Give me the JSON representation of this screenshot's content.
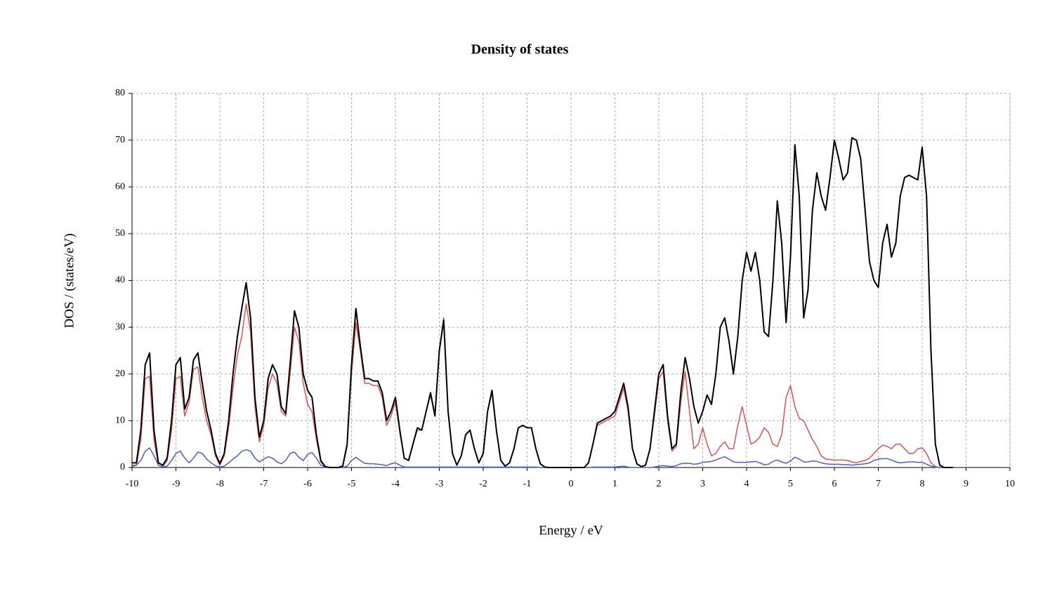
{
  "chart_data": {
    "type": "line",
    "title": "Density of states",
    "x_label": "Energy / eV",
    "y_label": "DOS / (states/eV)",
    "xlim": [
      -10,
      10
    ],
    "ylim": [
      0,
      80
    ],
    "xticks": [
      -10,
      -9,
      -8,
      -7,
      -6,
      -5,
      -4,
      -3,
      -2,
      -1,
      0,
      1,
      2,
      3,
      4,
      5,
      6,
      7,
      8,
      9,
      10
    ],
    "yticks": [
      0,
      10,
      20,
      30,
      40,
      50,
      60,
      70,
      80
    ],
    "grid": true,
    "x": [
      -10,
      -9.9,
      -9.8,
      -9.7,
      -9.6,
      -9.5,
      -9.4,
      -9.3,
      -9.2,
      -9.1,
      -9,
      -8.9,
      -8.8,
      -8.7,
      -8.6,
      -8.5,
      -8.4,
      -8.3,
      -8.2,
      -8.1,
      -8,
      -7.9,
      -7.8,
      -7.7,
      -7.6,
      -7.5,
      -7.4,
      -7.3,
      -7.2,
      -7.1,
      -7,
      -6.9,
      -6.8,
      -6.7,
      -6.6,
      -6.5,
      -6.4,
      -6.3,
      -6.2,
      -6.1,
      -6,
      -5.9,
      -5.8,
      -5.7,
      -5.6,
      -5.5,
      -5.4,
      -5.3,
      -5.2,
      -5.1,
      -5,
      -4.9,
      -4.8,
      -4.7,
      -4.6,
      -4.5,
      -4.4,
      -4.3,
      -4.2,
      -4.1,
      -4,
      -3.9,
      -3.8,
      -3.7,
      -3.6,
      -3.5,
      -3.4,
      -3.3,
      -3.2,
      -3.1,
      -3,
      -2.9,
      -2.8,
      -2.7,
      -2.6,
      -2.5,
      -2.4,
      -2.3,
      -2.2,
      -2.1,
      -2,
      -1.9,
      -1.8,
      -1.7,
      -1.6,
      -1.5,
      -1.4,
      -1.3,
      -1.2,
      -1.1,
      -1,
      -0.9,
      -0.8,
      -0.7,
      -0.6,
      -0.5,
      -0.4,
      -0.3,
      -0.2,
      -0.1,
      0,
      0.1,
      0.2,
      0.3,
      0.4,
      0.5,
      0.6,
      0.7,
      0.8,
      0.9,
      1,
      1.1,
      1.2,
      1.3,
      1.4,
      1.5,
      1.6,
      1.7,
      1.8,
      1.9,
      2,
      2.1,
      2.2,
      2.3,
      2.4,
      2.5,
      2.6,
      2.7,
      2.8,
      2.9,
      3,
      3.1,
      3.2,
      3.3,
      3.4,
      3.5,
      3.6,
      3.7,
      3.8,
      3.9,
      4,
      4.1,
      4.2,
      4.3,
      4.4,
      4.5,
      4.6,
      4.7,
      4.8,
      4.9,
      5,
      5.1,
      5.2,
      5.3,
      5.4,
      5.5,
      5.6,
      5.7,
      5.8,
      5.9,
      6,
      6.1,
      6.2,
      6.3,
      6.4,
      6.5,
      6.6,
      6.7,
      6.8,
      6.9,
      7,
      7.1,
      7.2,
      7.3,
      7.4,
      7.5,
      7.6,
      7.7,
      7.8,
      7.9,
      8,
      8.1,
      8.2,
      8.3,
      8.4,
      8.5,
      8.6,
      8.7
    ],
    "series": [
      {
        "color": "#e05050",
        "values": [
          0.5,
          0.5,
          6,
          19,
          19.5,
          6,
          0.5,
          0.2,
          1.5,
          8,
          19,
          19.5,
          11,
          14,
          21,
          21.5,
          15,
          10,
          7,
          2.5,
          0.5,
          2.5,
          8.5,
          17,
          24,
          28,
          35,
          29,
          13,
          5.5,
          9,
          17,
          20,
          18,
          12,
          11,
          20,
          30,
          27,
          18,
          13.5,
          12,
          6,
          1.2,
          0.1,
          0,
          0,
          0,
          0.2,
          4.5,
          20,
          31,
          25,
          18,
          18,
          17.5,
          17.5,
          15,
          9,
          11,
          14,
          7.5,
          2,
          1.5,
          5,
          8,
          8,
          12,
          15.5,
          11,
          25,
          32,
          12,
          3,
          0.5,
          2.5,
          7,
          8,
          4,
          1,
          3,
          12,
          16,
          8,
          1.5,
          0.3,
          1,
          4,
          8.5,
          9,
          8.5,
          8.5,
          4,
          0.8,
          0.1,
          0,
          0,
          0,
          0,
          0,
          0,
          0,
          0,
          0,
          1,
          5,
          9,
          9.5,
          10,
          10.5,
          11,
          14,
          17,
          12,
          4,
          0.8,
          0.2,
          0.5,
          4,
          11,
          19,
          20.5,
          10,
          3.5,
          4.5,
          14,
          20.5,
          12,
          4,
          5,
          8.5,
          5,
          2.5,
          3,
          4.5,
          5.5,
          4,
          4,
          9,
          13,
          9,
          5,
          5.5,
          6.5,
          8.5,
          7.5,
          5,
          4.5,
          7,
          15,
          17.5,
          13,
          10.5,
          10,
          8,
          6,
          4.5,
          2.5,
          1.8,
          1.7,
          1.6,
          1.6,
          1.6,
          1.5,
          1.2,
          1,
          1.3,
          1.5,
          2,
          3,
          4,
          4.8,
          4.5,
          4,
          5,
          5,
          4,
          3,
          3,
          4,
          4.2,
          3,
          1,
          0.2,
          0,
          0,
          0,
          0
        ]
      },
      {
        "color": "#4a5fc8",
        "values": [
          0.2,
          0.5,
          1.5,
          3.5,
          4.2,
          2.5,
          0.5,
          0.1,
          0.3,
          1.5,
          3,
          3.5,
          2,
          1,
          2,
          3.3,
          3,
          1.8,
          1,
          0.4,
          0.1,
          0.3,
          1,
          1.8,
          2.5,
          3.5,
          3.8,
          3.5,
          2,
          1.2,
          1.8,
          2.3,
          2,
          1.2,
          0.8,
          1.5,
          3,
          3.3,
          2.2,
          1.5,
          2.8,
          3.2,
          2,
          0.5,
          0.1,
          0,
          0,
          0,
          0,
          0.3,
          1.5,
          2.2,
          1.5,
          0.9,
          0.8,
          0.8,
          0.7,
          0.6,
          0.4,
          0.8,
          1,
          0.5,
          0.1,
          0.1,
          0.1,
          0.1,
          0.1,
          0.1,
          0.1,
          0.1,
          0.1,
          0.1,
          0.1,
          0.1,
          0.1,
          0.1,
          0.1,
          0.1,
          0.1,
          0.1,
          0.1,
          0.1,
          0.1,
          0.1,
          0.1,
          0.1,
          0.1,
          0.1,
          0.1,
          0.1,
          0.1,
          0.1,
          0.1,
          0,
          0,
          0,
          0,
          0,
          0,
          0,
          0,
          0,
          0,
          0,
          0,
          0.1,
          0.1,
          0.1,
          0.1,
          0.1,
          0.1,
          0.2,
          0.3,
          0.1,
          0,
          0,
          0,
          0,
          0,
          0.1,
          0.3,
          0.4,
          0.3,
          0.2,
          0.4,
          0.8,
          0.9,
          0.9,
          0.7,
          0.8,
          1.1,
          1.2,
          1.3,
          1.6,
          2,
          2.3,
          1.8,
          1.2,
          1.1,
          1.1,
          1.1,
          1.2,
          1.3,
          1,
          0.6,
          0.7,
          1.3,
          1.6,
          1.2,
          0.9,
          1.4,
          2.2,
          1.8,
          1.2,
          1.2,
          1.4,
          1.3,
          1,
          0.8,
          0.7,
          0.7,
          0.7,
          0.6,
          0.6,
          0.5,
          0.6,
          0.7,
          0.8,
          1,
          1.5,
          1.8,
          1.9,
          1.9,
          1.6,
          1.2,
          1,
          1.1,
          1.2,
          1.2,
          1.1,
          1.1,
          0.7,
          0.3,
          0.1,
          0,
          0,
          0,
          0
        ]
      },
      {
        "color": "#000000",
        "values": [
          1,
          1,
          8,
          22,
          24.5,
          8,
          1,
          0.5,
          2,
          10,
          22,
          23.5,
          12.5,
          15,
          23,
          24.5,
          18,
          12,
          8,
          3,
          0.8,
          3,
          10,
          20,
          28,
          34,
          39.5,
          32,
          15,
          6.5,
          10,
          19,
          22,
          20,
          13,
          11.5,
          22,
          33.5,
          30,
          20,
          16.5,
          15,
          7,
          1.5,
          0.2,
          0,
          0,
          0,
          0.3,
          5,
          22,
          34,
          26,
          19,
          19,
          18.5,
          18.5,
          16,
          10,
          12,
          15,
          8,
          2,
          1.5,
          5,
          8.5,
          8,
          12,
          16,
          11,
          25,
          31.5,
          12,
          3,
          0.5,
          2.5,
          7,
          8,
          4,
          1,
          3,
          12,
          16.5,
          8,
          1.5,
          0.3,
          1,
          4,
          8.5,
          9,
          8.5,
          8.5,
          4,
          0.8,
          0.1,
          0,
          0,
          0,
          0,
          0,
          0,
          0,
          0,
          0,
          1,
          5,
          9.5,
          10,
          10.5,
          11,
          12,
          15,
          18,
          13,
          4,
          0.8,
          0.2,
          0.5,
          4,
          12,
          20,
          22,
          11,
          4,
          5,
          16,
          23.5,
          19,
          13,
          9.5,
          12,
          15.5,
          13.5,
          20,
          30,
          32,
          27,
          20,
          28,
          40,
          46,
          42,
          46,
          40,
          29,
          28,
          40,
          57,
          48,
          31,
          45,
          69,
          58,
          32,
          38,
          55,
          63,
          58,
          55,
          62,
          70,
          66,
          61.5,
          63,
          70.5,
          70,
          66,
          55,
          44,
          40,
          38.5,
          48,
          52,
          45,
          48,
          58,
          62,
          62.5,
          62,
          61.5,
          68.5,
          58,
          25,
          5,
          0.5,
          0,
          0,
          0
        ]
      }
    ]
  }
}
